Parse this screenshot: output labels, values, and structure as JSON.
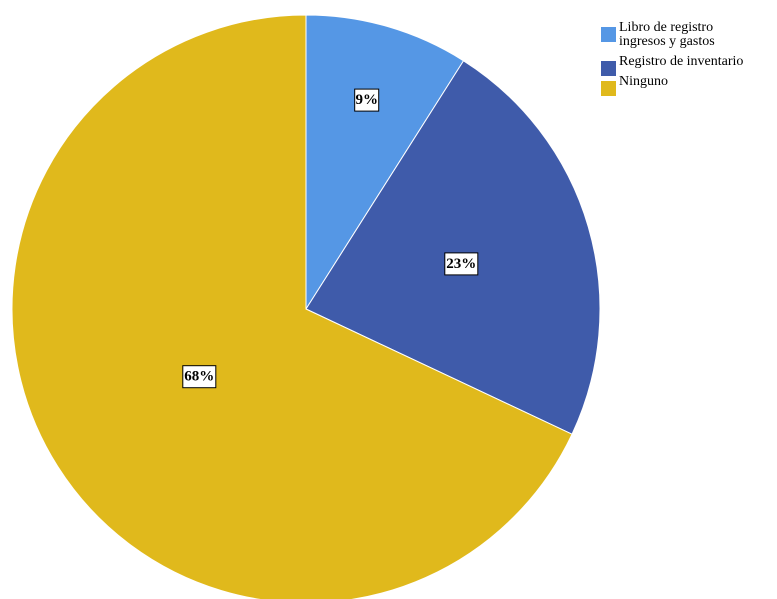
{
  "chart_data": {
    "type": "pie",
    "title": "",
    "categories": [
      "Libro de registro ingresos y gastos",
      "Registro de inventario",
      "Ninguno"
    ],
    "values": [
      9,
      23,
      68
    ],
    "value_labels": [
      "9%",
      "23%",
      "68%"
    ],
    "legend": {
      "placement": "top-right",
      "entries": [
        {
          "lines": [
            "Libro de registro",
            "ingresos y gastos"
          ],
          "color": "#5597E5"
        },
        {
          "lines": [
            "Registro de inventario"
          ],
          "color": "#3F5BAA"
        },
        {
          "lines": [
            "Ninguno"
          ],
          "color": "#E0B91C"
        }
      ]
    },
    "colors": [
      "#5597E5",
      "#3F5BAA",
      "#E0B91C"
    ],
    "start_angle": "12 o'clock",
    "direction": "clockwise"
  }
}
